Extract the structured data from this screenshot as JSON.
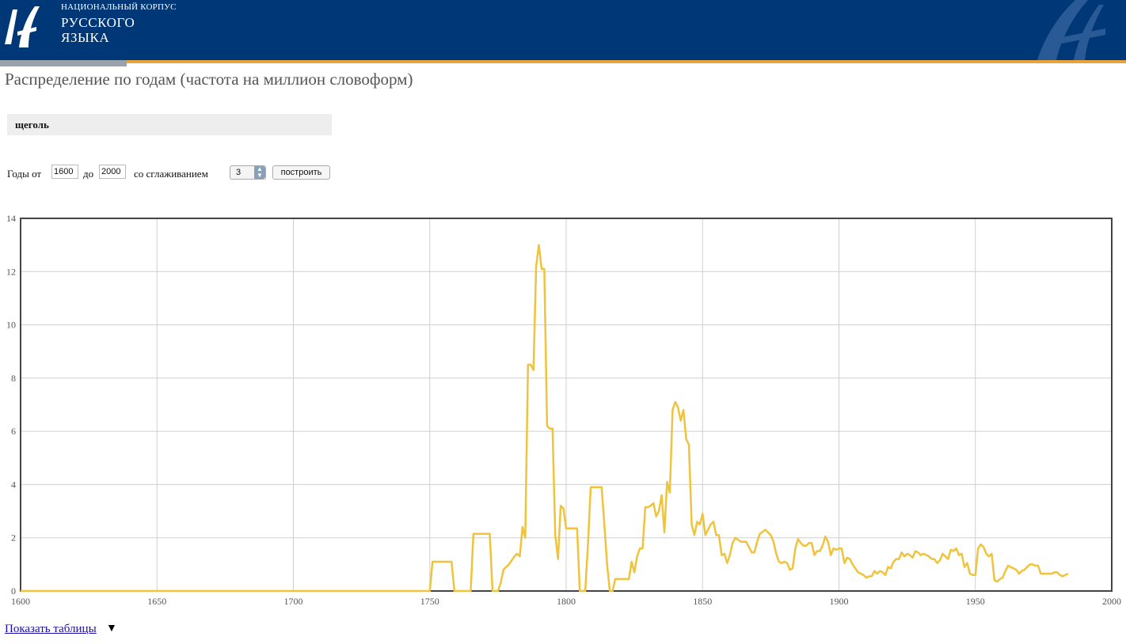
{
  "header": {
    "logo_small": "НАЦИОНАЛЬНЫЙ КОРПУС",
    "logo_line1": "РУССКОГО",
    "logo_line2": "ЯЗЫКА",
    "colors": {
      "background": "#003777",
      "stripe": "#e8a33d"
    }
  },
  "page": {
    "title": "Распределение по годам (частота на миллион словоформ)"
  },
  "query": {
    "word": "щеголь"
  },
  "controls": {
    "years_from_label": "Годы от",
    "year_from": "1600",
    "years_to_label": "до",
    "year_to": "2000",
    "smoothing_label": "со сглаживанием",
    "smoothing_value": "3",
    "build_button": "построить"
  },
  "footer": {
    "show_tables_link": "Показать таблицы",
    "arrow": "▼"
  },
  "chart_data": {
    "type": "line",
    "title": "",
    "xlabel": "",
    "ylabel": "",
    "xlim": [
      1600,
      2000
    ],
    "ylim": [
      0,
      14
    ],
    "xticks": [
      1600,
      1650,
      1700,
      1750,
      1800,
      1850,
      1900,
      1950,
      2000
    ],
    "yticks": [
      0,
      2,
      4,
      6,
      8,
      10,
      12,
      14
    ],
    "grid": true,
    "legend": "none",
    "series": [
      {
        "color": "#f0c33c",
        "points": [
          [
            1600,
            0
          ],
          [
            1750,
            0
          ],
          [
            1751,
            1.1
          ],
          [
            1758,
            1.1
          ],
          [
            1759,
            0
          ],
          [
            1765,
            0
          ],
          [
            1766,
            2.15
          ],
          [
            1772,
            2.15
          ],
          [
            1773,
            0
          ],
          [
            1775,
            0
          ],
          [
            1776,
            0.3
          ],
          [
            1777,
            0.8
          ],
          [
            1779,
            1.0
          ],
          [
            1781,
            1.3
          ],
          [
            1782,
            1.4
          ],
          [
            1783,
            1.3
          ],
          [
            1784,
            2.4
          ],
          [
            1785,
            2.0
          ],
          [
            1786,
            8.5
          ],
          [
            1787,
            8.5
          ],
          [
            1788,
            8.3
          ],
          [
            1789,
            12.2
          ],
          [
            1790,
            13.0
          ],
          [
            1791,
            12.1
          ],
          [
            1792,
            12.1
          ],
          [
            1793,
            6.2
          ],
          [
            1794,
            6.1
          ],
          [
            1795,
            6.1
          ],
          [
            1796,
            2.1
          ],
          [
            1797,
            1.2
          ],
          [
            1798,
            3.2
          ],
          [
            1799,
            3.1
          ],
          [
            1800,
            2.35
          ],
          [
            1804,
            2.35
          ],
          [
            1805,
            0
          ],
          [
            1807,
            0
          ],
          [
            1808,
            1.8
          ],
          [
            1809,
            3.9
          ],
          [
            1813,
            3.9
          ],
          [
            1814,
            2.5
          ],
          [
            1815,
            1.0
          ],
          [
            1816,
            0
          ],
          [
            1817,
            0
          ],
          [
            1818,
            0.45
          ],
          [
            1823,
            0.45
          ],
          [
            1824,
            1.1
          ],
          [
            1825,
            0.7
          ],
          [
            1826,
            1.3
          ],
          [
            1827,
            1.6
          ],
          [
            1828,
            1.6
          ],
          [
            1829,
            3.15
          ],
          [
            1830,
            3.15
          ],
          [
            1831,
            3.2
          ],
          [
            1832,
            3.3
          ],
          [
            1833,
            2.8
          ],
          [
            1834,
            3.0
          ],
          [
            1835,
            3.6
          ],
          [
            1836,
            2.2
          ],
          [
            1837,
            4.1
          ],
          [
            1838,
            3.7
          ],
          [
            1839,
            6.8
          ],
          [
            1840,
            7.1
          ],
          [
            1841,
            6.9
          ],
          [
            1842,
            6.4
          ],
          [
            1843,
            6.8
          ],
          [
            1844,
            5.7
          ],
          [
            1845,
            5.5
          ],
          [
            1846,
            2.5
          ],
          [
            1847,
            2.1
          ],
          [
            1848,
            2.6
          ],
          [
            1849,
            2.5
          ],
          [
            1850,
            2.9
          ],
          [
            1851,
            2.1
          ],
          [
            1852,
            2.3
          ],
          [
            1853,
            2.5
          ],
          [
            1854,
            2.6
          ],
          [
            1855,
            2.1
          ],
          [
            1856,
            2.1
          ],
          [
            1857,
            1.35
          ],
          [
            1858,
            1.4
          ],
          [
            1859,
            1.05
          ],
          [
            1860,
            1.35
          ],
          [
            1861,
            1.8
          ],
          [
            1862,
            2.0
          ],
          [
            1864,
            1.85
          ],
          [
            1866,
            1.85
          ],
          [
            1867,
            1.65
          ],
          [
            1868,
            1.45
          ],
          [
            1869,
            1.45
          ],
          [
            1870,
            1.85
          ],
          [
            1871,
            2.15
          ],
          [
            1873,
            2.3
          ],
          [
            1875,
            2.1
          ],
          [
            1876,
            1.85
          ],
          [
            1877,
            1.4
          ],
          [
            1878,
            1.1
          ],
          [
            1879,
            1.05
          ],
          [
            1880,
            1.1
          ],
          [
            1881,
            1.05
          ],
          [
            1882,
            0.8
          ],
          [
            1883,
            0.85
          ],
          [
            1884,
            1.6
          ],
          [
            1885,
            1.95
          ],
          [
            1886,
            1.8
          ],
          [
            1887,
            1.7
          ],
          [
            1888,
            1.7
          ],
          [
            1889,
            1.8
          ],
          [
            1890,
            1.8
          ],
          [
            1891,
            1.35
          ],
          [
            1892,
            1.5
          ],
          [
            1893,
            1.5
          ],
          [
            1894,
            1.7
          ],
          [
            1895,
            2.05
          ],
          [
            1896,
            1.85
          ],
          [
            1897,
            1.35
          ],
          [
            1898,
            1.6
          ],
          [
            1899,
            1.55
          ],
          [
            1900,
            1.6
          ],
          [
            1901,
            1.6
          ],
          [
            1902,
            1.05
          ],
          [
            1903,
            1.25
          ],
          [
            1904,
            1.2
          ],
          [
            1905,
            1.0
          ],
          [
            1906,
            0.85
          ],
          [
            1907,
            0.7
          ],
          [
            1908,
            0.65
          ],
          [
            1909,
            0.6
          ],
          [
            1910,
            0.5
          ],
          [
            1911,
            0.55
          ],
          [
            1912,
            0.55
          ],
          [
            1913,
            0.75
          ],
          [
            1914,
            0.65
          ],
          [
            1915,
            0.75
          ],
          [
            1916,
            0.7
          ],
          [
            1917,
            0.6
          ],
          [
            1918,
            0.9
          ],
          [
            1919,
            0.85
          ],
          [
            1920,
            1.1
          ],
          [
            1921,
            1.2
          ],
          [
            1922,
            1.2
          ],
          [
            1923,
            1.45
          ],
          [
            1924,
            1.3
          ],
          [
            1925,
            1.4
          ],
          [
            1926,
            1.35
          ],
          [
            1927,
            1.25
          ],
          [
            1928,
            1.5
          ],
          [
            1929,
            1.45
          ],
          [
            1930,
            1.35
          ],
          [
            1931,
            1.4
          ],
          [
            1932,
            1.35
          ],
          [
            1933,
            1.3
          ],
          [
            1934,
            1.2
          ],
          [
            1935,
            1.2
          ],
          [
            1936,
            1.05
          ],
          [
            1937,
            1.15
          ],
          [
            1938,
            1.4
          ],
          [
            1939,
            1.3
          ],
          [
            1940,
            1.2
          ],
          [
            1941,
            1.55
          ],
          [
            1942,
            1.5
          ],
          [
            1943,
            1.6
          ],
          [
            1944,
            1.35
          ],
          [
            1945,
            1.4
          ],
          [
            1946,
            0.9
          ],
          [
            1947,
            1.05
          ],
          [
            1948,
            0.65
          ],
          [
            1949,
            0.6
          ],
          [
            1950,
            0.6
          ],
          [
            1951,
            1.6
          ],
          [
            1952,
            1.75
          ],
          [
            1953,
            1.65
          ],
          [
            1954,
            1.4
          ],
          [
            1955,
            1.3
          ],
          [
            1956,
            1.4
          ],
          [
            1957,
            0.4
          ],
          [
            1958,
            0.35
          ],
          [
            1959,
            0.45
          ],
          [
            1960,
            0.5
          ],
          [
            1961,
            0.75
          ],
          [
            1962,
            0.95
          ],
          [
            1963,
            0.9
          ],
          [
            1964,
            0.85
          ],
          [
            1965,
            0.8
          ],
          [
            1966,
            0.65
          ],
          [
            1967,
            0.75
          ],
          [
            1968,
            0.8
          ],
          [
            1969,
            0.9
          ],
          [
            1970,
            1.0
          ],
          [
            1971,
            1.0
          ],
          [
            1972,
            0.95
          ],
          [
            1973,
            0.95
          ],
          [
            1974,
            0.65
          ],
          [
            1975,
            0.65
          ],
          [
            1976,
            0.65
          ],
          [
            1977,
            0.65
          ],
          [
            1978,
            0.65
          ],
          [
            1979,
            0.7
          ],
          [
            1980,
            0.7
          ],
          [
            1981,
            0.6
          ],
          [
            1982,
            0.55
          ],
          [
            1983,
            0.6
          ],
          [
            1984,
            0.65
          ]
        ]
      }
    ]
  }
}
